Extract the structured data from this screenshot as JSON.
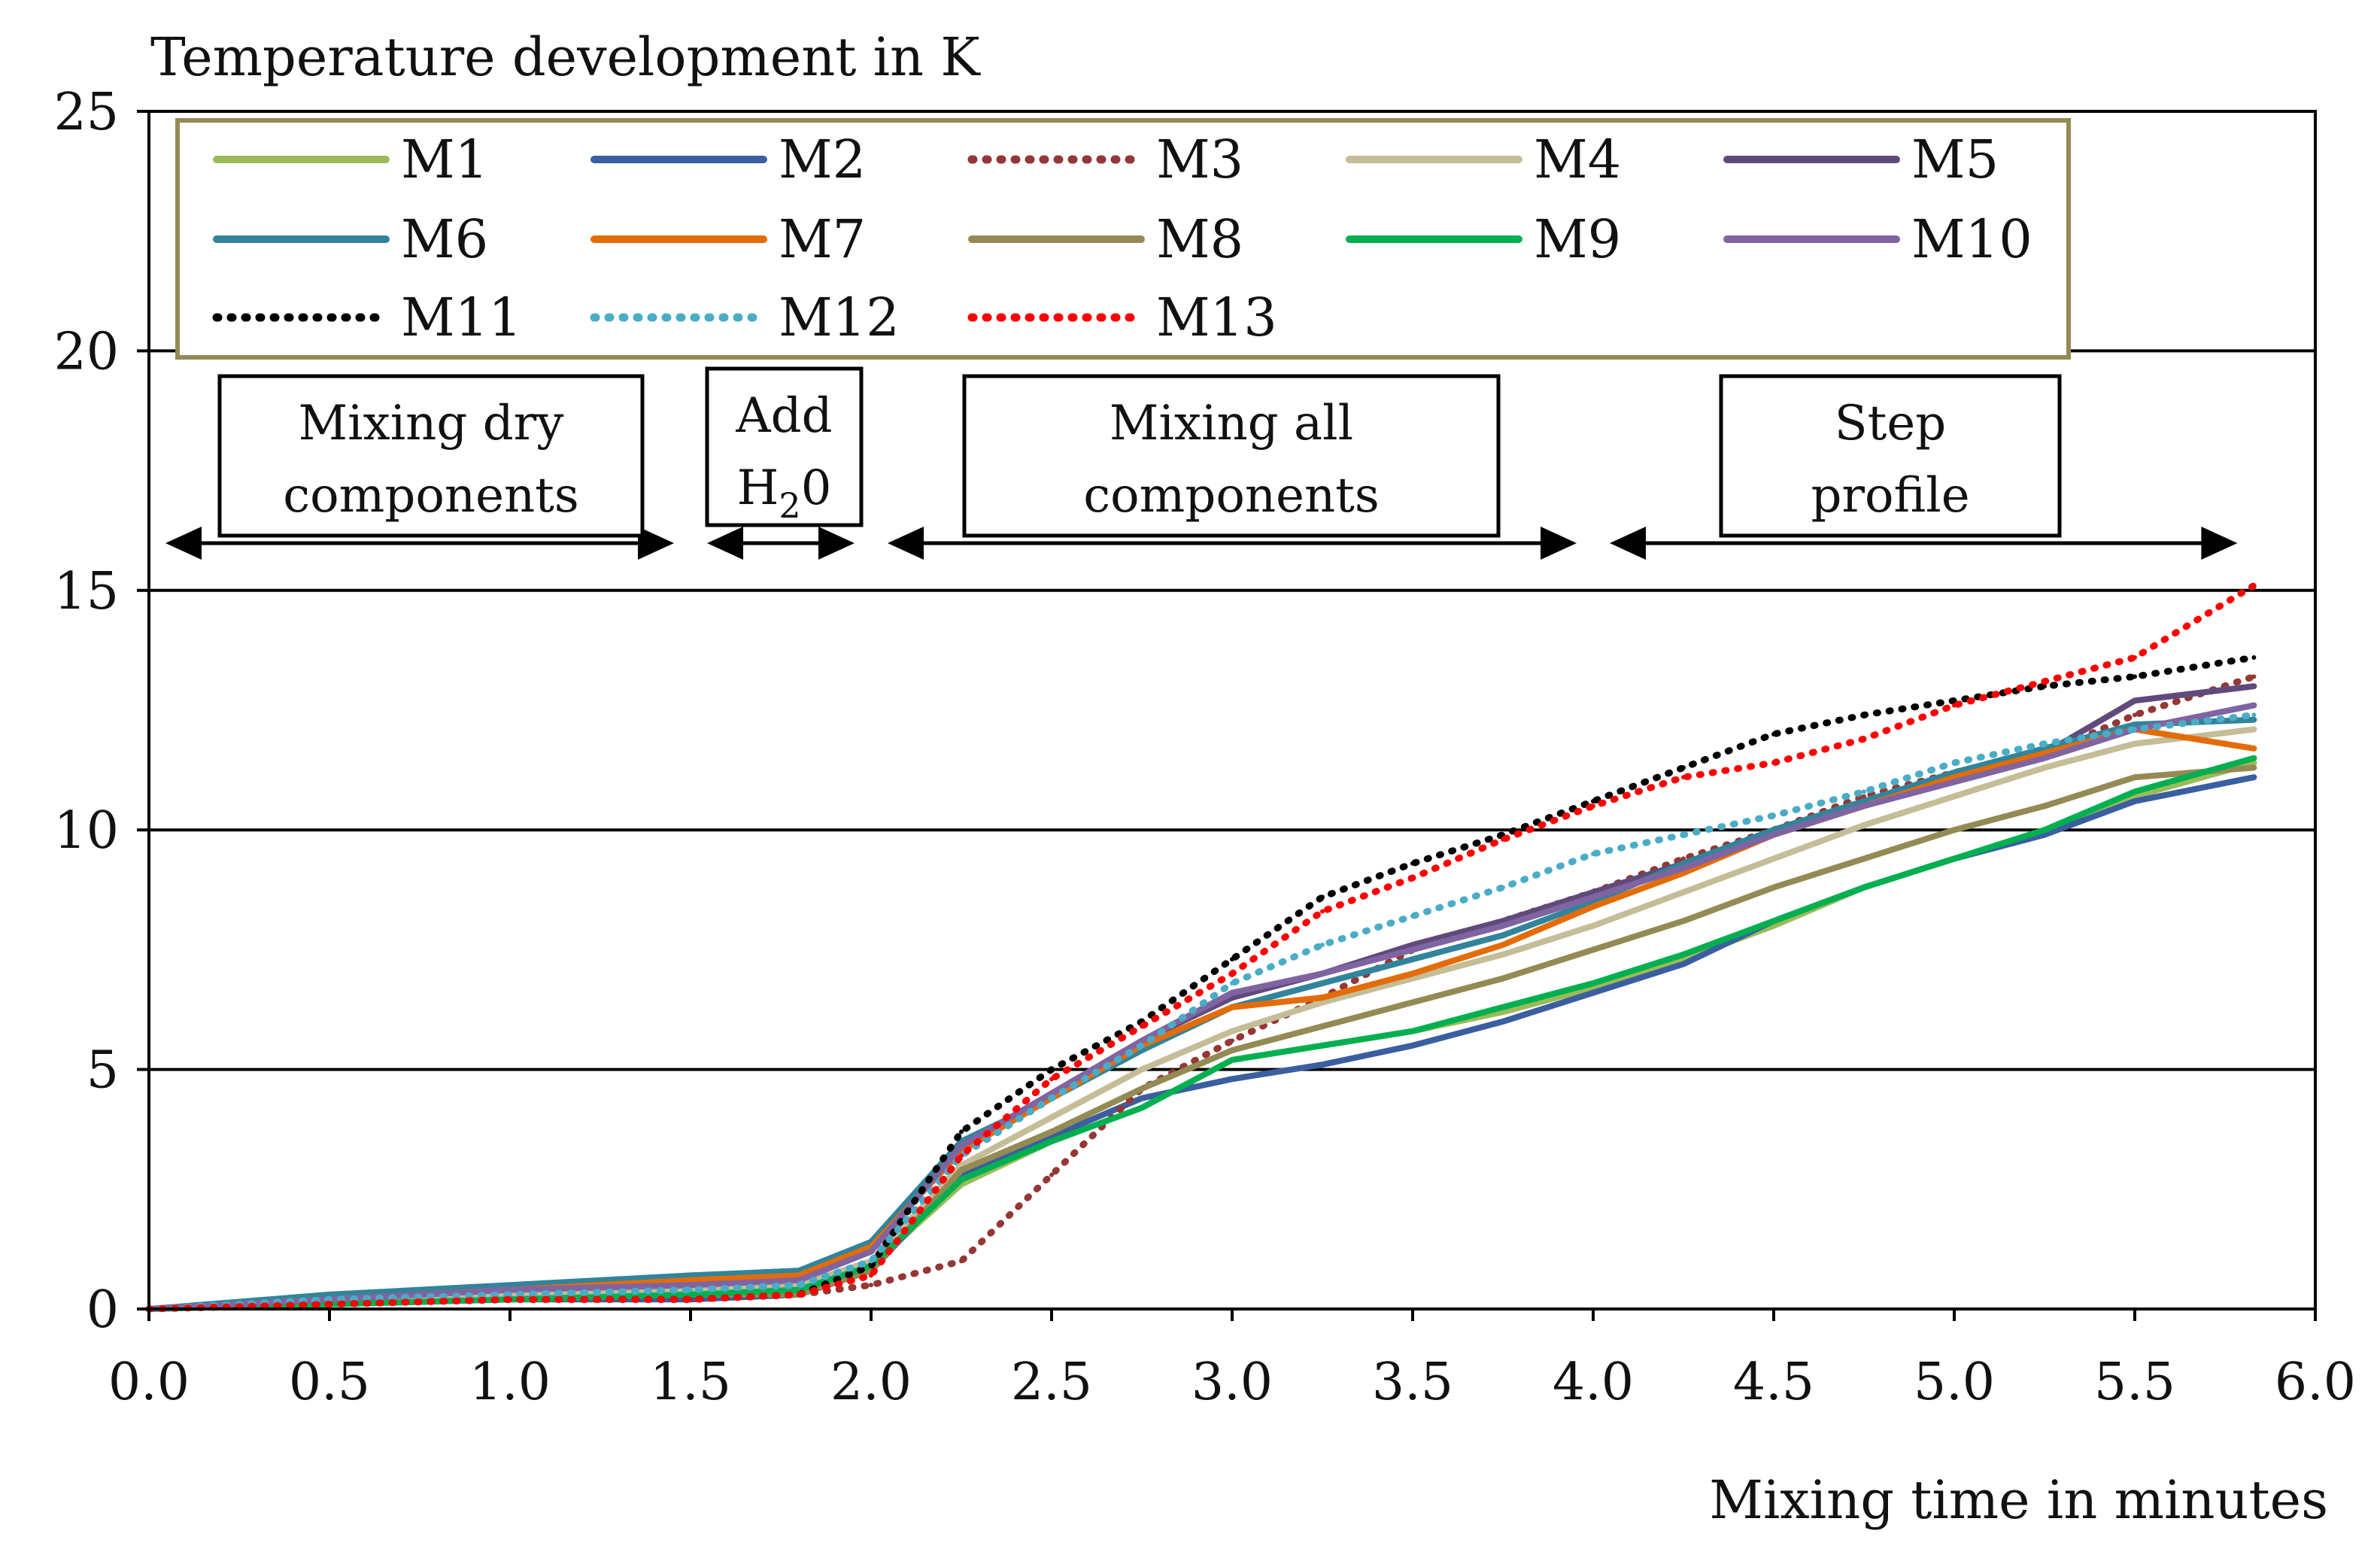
{
  "chart_data": {
    "type": "line",
    "title": "",
    "ylabel": "Temperature development in K",
    "xlabel": "Mixing time in minutes",
    "xlim": [
      0,
      6
    ],
    "ylim": [
      0,
      25
    ],
    "x_ticks": [
      "0.0",
      "0.5",
      "1.0",
      "1.5",
      "2.0",
      "2.5",
      "3.0",
      "3.5",
      "4.0",
      "4.5",
      "5.0",
      "5.5",
      "6.0"
    ],
    "y_ticks": [
      "0",
      "5",
      "10",
      "15",
      "20",
      "25"
    ],
    "grid_y": [
      5,
      10,
      15,
      20
    ],
    "legend_position": "top",
    "phases": [
      {
        "line1": "Mixing dry",
        "line2": "components",
        "start": 0.0,
        "end": 1.5
      },
      {
        "line1": "Add",
        "line2": "H",
        "sub": "2",
        "after": "0",
        "start": 1.5,
        "end": 2.0
      },
      {
        "line1": "Mixing all",
        "line2": "components",
        "start": 2.0,
        "end": 4.0
      },
      {
        "line1": "Step",
        "line2": "profile",
        "start": 4.0,
        "end": 5.83
      }
    ],
    "x": [
      0,
      0.5,
      1.0,
      1.5,
      1.8,
      2.0,
      2.25,
      2.5,
      2.75,
      3.0,
      3.25,
      3.5,
      3.75,
      4.0,
      4.25,
      4.5,
      4.75,
      5.0,
      5.25,
      5.5,
      5.83
    ],
    "series": [
      {
        "name": "M1",
        "color": "#9bbb59",
        "dash": "solid",
        "values": [
          0,
          0.2,
          0.3,
          0.4,
          0.4,
          0.9,
          2.6,
          3.5,
          4.2,
          5.2,
          5.5,
          5.8,
          6.2,
          6.7,
          7.3,
          8.0,
          8.8,
          9.4,
          9.9,
          10.7,
          11.4
        ]
      },
      {
        "name": "M2",
        "color": "#3b5ea0",
        "dash": "solid",
        "values": [
          0,
          0.1,
          0.2,
          0.2,
          0.3,
          0.8,
          2.8,
          3.6,
          4.4,
          4.8,
          5.1,
          5.5,
          6.0,
          6.6,
          7.2,
          8.1,
          8.8,
          9.4,
          9.9,
          10.6,
          11.1
        ]
      },
      {
        "name": "M3",
        "color": "#953735",
        "dash": "dotted",
        "values": [
          0,
          0.1,
          0.2,
          0.2,
          0.3,
          0.5,
          1.0,
          2.8,
          4.6,
          5.6,
          6.5,
          7.5,
          8.1,
          8.7,
          9.4,
          10.0,
          10.7,
          11.2,
          11.6,
          12.4,
          13.2
        ]
      },
      {
        "name": "M4",
        "color": "#c4bd97",
        "dash": "solid",
        "values": [
          0,
          0.2,
          0.3,
          0.4,
          0.5,
          1.0,
          3.0,
          4.0,
          5.0,
          5.8,
          6.4,
          6.9,
          7.4,
          8.0,
          8.7,
          9.4,
          10.1,
          10.7,
          11.3,
          11.8,
          12.1
        ]
      },
      {
        "name": "M5",
        "color": "#604a7b",
        "dash": "solid",
        "values": [
          0,
          0.2,
          0.4,
          0.5,
          0.7,
          1.3,
          3.4,
          4.5,
          5.6,
          6.5,
          7.0,
          7.6,
          8.1,
          8.7,
          9.3,
          10.0,
          10.6,
          11.1,
          11.6,
          12.7,
          13.0
        ]
      },
      {
        "name": "M6",
        "color": "#31849b",
        "dash": "solid",
        "values": [
          0,
          0.3,
          0.5,
          0.7,
          0.8,
          1.4,
          3.5,
          4.4,
          5.4,
          6.3,
          6.8,
          7.3,
          7.8,
          8.5,
          9.3,
          10.0,
          10.6,
          11.2,
          11.7,
          12.2,
          12.3
        ]
      },
      {
        "name": "M7",
        "color": "#e36c09",
        "dash": "solid",
        "values": [
          0,
          0.2,
          0.4,
          0.6,
          0.7,
          1.3,
          3.3,
          4.4,
          5.5,
          6.3,
          6.5,
          7.0,
          7.6,
          8.4,
          9.1,
          9.9,
          10.5,
          11.1,
          11.6,
          12.1,
          11.7
        ]
      },
      {
        "name": "M8",
        "color": "#948a54",
        "dash": "solid",
        "values": [
          0,
          0.1,
          0.2,
          0.3,
          0.3,
          0.8,
          2.9,
          3.7,
          4.6,
          5.4,
          5.9,
          6.4,
          6.9,
          7.5,
          8.1,
          8.8,
          9.4,
          10.0,
          10.5,
          11.1,
          11.3
        ]
      },
      {
        "name": "M9",
        "color": "#00b050",
        "dash": "solid",
        "values": [
          0,
          0.1,
          0.2,
          0.3,
          0.4,
          0.9,
          2.7,
          3.5,
          4.2,
          5.2,
          5.5,
          5.8,
          6.3,
          6.8,
          7.4,
          8.1,
          8.8,
          9.4,
          10.0,
          10.8,
          11.5
        ]
      },
      {
        "name": "M10",
        "color": "#8064a2",
        "dash": "solid",
        "values": [
          0,
          0.2,
          0.4,
          0.5,
          0.6,
          1.2,
          3.4,
          4.5,
          5.6,
          6.6,
          7.0,
          7.5,
          8.0,
          8.6,
          9.2,
          9.9,
          10.5,
          11.0,
          11.5,
          12.1,
          12.6
        ]
      },
      {
        "name": "M11",
        "color": "#000000",
        "dash": "dotted",
        "values": [
          0,
          0.1,
          0.2,
          0.2,
          0.3,
          0.9,
          3.7,
          5.0,
          6.0,
          7.3,
          8.6,
          9.3,
          9.9,
          10.6,
          11.3,
          12.0,
          12.4,
          12.7,
          13.0,
          13.2,
          13.6
        ]
      },
      {
        "name": "M12",
        "color": "#4bacc6",
        "dash": "dotted",
        "values": [
          0,
          0.2,
          0.3,
          0.4,
          0.5,
          1.0,
          3.2,
          4.4,
          5.5,
          6.8,
          7.6,
          8.2,
          8.8,
          9.5,
          9.9,
          10.3,
          10.8,
          11.4,
          11.8,
          12.1,
          12.4
        ]
      },
      {
        "name": "M13",
        "color": "#ff0000",
        "dash": "dotted",
        "values": [
          0,
          0.1,
          0.2,
          0.2,
          0.3,
          0.7,
          3.2,
          4.8,
          5.9,
          7.0,
          8.3,
          9.0,
          9.8,
          10.5,
          11.1,
          11.4,
          11.9,
          12.6,
          13.1,
          13.6,
          15.1
        ]
      }
    ]
  }
}
